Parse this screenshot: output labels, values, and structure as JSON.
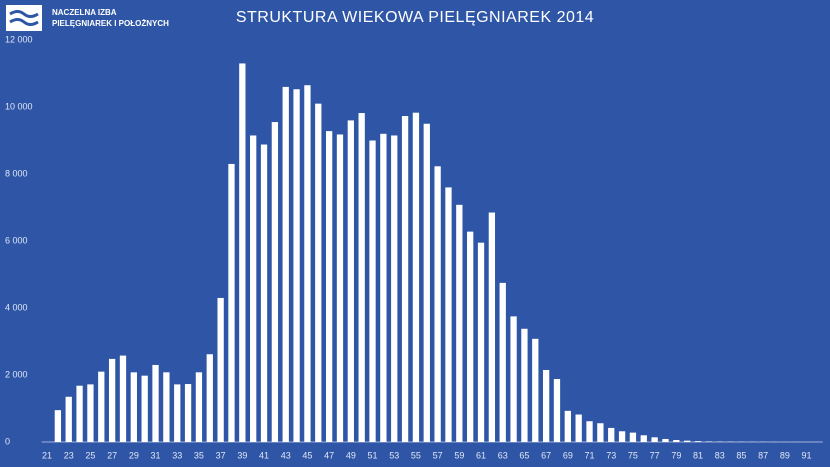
{
  "logo": {
    "line1": "NACZELNA IZBA",
    "line2": "PIELĘGNIAREK I POŁOŻNYCH"
  },
  "chart_data": {
    "type": "bar",
    "title": "STRUKTURA WIEKOWA PIELĘGNIAREK 2014",
    "color": "#ffffff",
    "categories": [
      "21",
      null,
      "23",
      null,
      "25",
      null,
      "27",
      null,
      "29",
      null,
      "31",
      null,
      "33",
      null,
      "35",
      null,
      "37",
      null,
      "39",
      null,
      "41",
      null,
      "43",
      null,
      "45",
      null,
      "47",
      null,
      "49",
      null,
      "51",
      null,
      "53",
      null,
      "55",
      null,
      "57",
      null,
      "59",
      null,
      "61",
      null,
      "63",
      null,
      "65",
      null,
      "67",
      null,
      "69",
      null,
      "71",
      null,
      "73",
      null,
      "75",
      null,
      "77",
      null,
      "79",
      null,
      "81",
      null,
      "83",
      null,
      "85",
      null,
      "87",
      null,
      "89",
      null,
      "91",
      null
    ],
    "values": [
      0,
      950,
      1350,
      1680,
      1720,
      2100,
      2480,
      2580,
      2080,
      1980,
      2300,
      2080,
      1720,
      1730,
      2080,
      2620,
      4300,
      8300,
      11300,
      9150,
      8880,
      9550,
      10600,
      10530,
      10650,
      10100,
      9280,
      9180,
      9600,
      9820,
      9000,
      9200,
      9150,
      9730,
      9830,
      9500,
      8230,
      7600,
      7080,
      6280,
      5950,
      6850,
      4750,
      3750,
      3380,
      3080,
      2150,
      1880,
      930,
      820,
      620,
      560,
      420,
      320,
      280,
      200,
      140,
      90,
      60,
      40,
      25,
      15,
      10,
      8,
      6,
      5,
      4,
      3,
      2,
      2,
      1,
      1
    ],
    "ylim": [
      0,
      12000
    ],
    "yticks": [
      0,
      {
        "value": 2000,
        "label": "2 000"
      },
      {
        "value": 4000,
        "label": "4 000"
      },
      {
        "value": 6000,
        "label": "6 000"
      },
      {
        "value": 8000,
        "label": "8 000"
      },
      {
        "value": 10000,
        "label": "10 000"
      },
      {
        "value": 12000,
        "label": "12 000"
      }
    ]
  }
}
